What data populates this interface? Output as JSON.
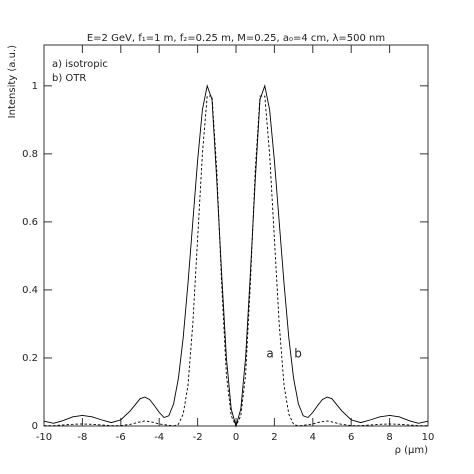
{
  "chart_data": {
    "type": "line",
    "title": "E=2 GeV, f₁=1 m, f₂=0.25 m, M=0.25, a₀=4 cm, λ=500 nm",
    "x_label": "ρ (μm)",
    "y_label": "Intensity (a.u.)",
    "annotations": [
      "a",
      "b"
    ],
    "x": [
      -10,
      -9.5,
      -9,
      -8.5,
      -8,
      -7.5,
      -7,
      -6.5,
      -6,
      -5.5,
      -5,
      -4.75,
      -4.5,
      -4.25,
      -4,
      -3.75,
      -3.5,
      -3.25,
      -3,
      -2.75,
      -2.5,
      -2.25,
      -2,
      -1.75,
      -1.5,
      -1.25,
      -1,
      -0.75,
      -0.5,
      -0.25,
      0,
      0.25,
      0.5,
      0.75,
      1,
      1.25,
      1.5,
      1.75,
      2,
      2.25,
      2.5,
      2.75,
      3,
      3.25,
      3.5,
      3.75,
      4,
      4.25,
      4.5,
      4.75,
      5,
      5.5,
      6,
      6.5,
      7,
      7.5,
      8,
      8.5,
      9,
      9.5,
      10
    ],
    "series": [
      {
        "name": "a) isotropic",
        "color": "#000000",
        "dashed": true,
        "values": [
          0.001,
          0.001,
          0.003,
          0.005,
          0.006,
          0.005,
          0.003,
          0.001,
          0.001,
          0.005,
          0.012,
          0.015,
          0.013,
          0.01,
          0.006,
          0.004,
          0.002,
          0,
          0.005,
          0.035,
          0.12,
          0.3,
          0.55,
          0.8,
          0.97,
          0.97,
          0.75,
          0.42,
          0.15,
          0.03,
          0,
          0.03,
          0.15,
          0.42,
          0.75,
          0.97,
          0.97,
          0.8,
          0.55,
          0.3,
          0.12,
          0.035,
          0.005,
          0,
          0.002,
          0.004,
          0.006,
          0.01,
          0.013,
          0.015,
          0.012,
          0.005,
          0.001,
          0.001,
          0.003,
          0.005,
          0.006,
          0.005,
          0.003,
          0.001,
          0.001
        ]
      },
      {
        "name": "b) OTR",
        "color": "#000000",
        "dashed": false,
        "values": [
          0.014,
          0.008,
          0.016,
          0.027,
          0.031,
          0.027,
          0.018,
          0.01,
          0.018,
          0.045,
          0.08,
          0.085,
          0.078,
          0.06,
          0.04,
          0.025,
          0.03,
          0.065,
          0.14,
          0.26,
          0.42,
          0.6,
          0.78,
          0.93,
          1.0,
          0.96,
          0.72,
          0.45,
          0.2,
          0.05,
          0,
          0.05,
          0.2,
          0.45,
          0.72,
          0.96,
          1.0,
          0.93,
          0.78,
          0.6,
          0.42,
          0.26,
          0.14,
          0.065,
          0.03,
          0.025,
          0.04,
          0.06,
          0.078,
          0.085,
          0.08,
          0.045,
          0.018,
          0.01,
          0.018,
          0.027,
          0.031,
          0.027,
          0.016,
          0.008,
          0.014
        ]
      }
    ],
    "xlim": [
      -10,
      10
    ],
    "xticks": [
      -10,
      -8,
      -6,
      -4,
      -2,
      0,
      2,
      4,
      6,
      8,
      10
    ],
    "ylim": [
      0,
      1.12
    ],
    "yticks": [
      0,
      0.2,
      0.4,
      0.6,
      0.8,
      1
    ],
    "grid": false,
    "legend": "upper left"
  }
}
